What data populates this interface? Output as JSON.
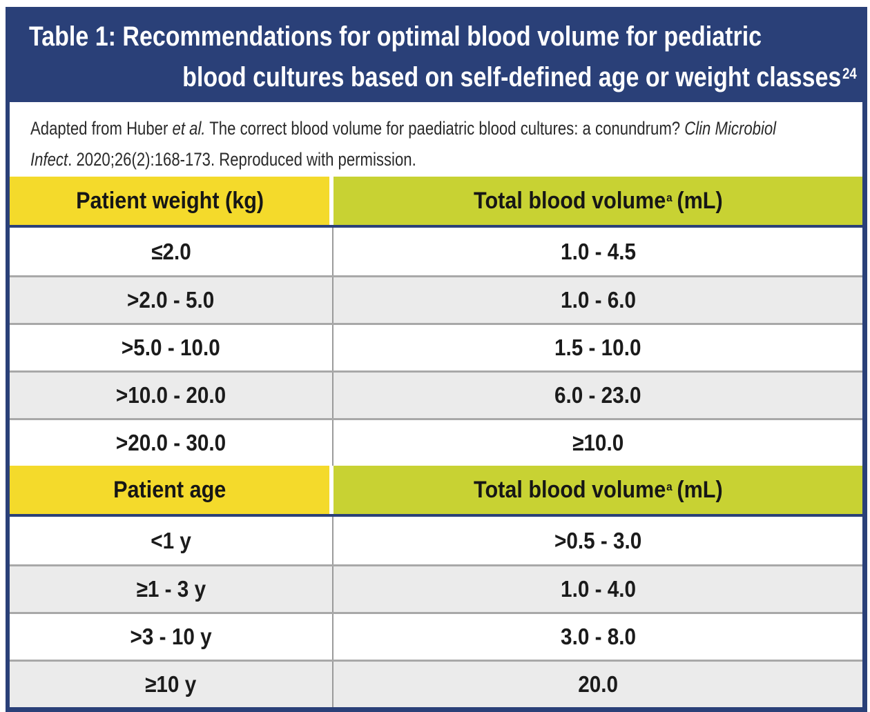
{
  "title": {
    "line1": "Table 1: Recommendations for optimal blood volume for pediatric",
    "line2": "blood cultures based on self-defined age or weight classes",
    "superscript": "24"
  },
  "citation": {
    "line1": {
      "t1": "Adapted from Huber ",
      "i1": "et al.",
      "t2": " The correct blood volume for paediatric blood cultures: a conundrum? ",
      "i2": "Clin Microbiol"
    },
    "line2": {
      "i1": "Infect",
      "t1": ". 2020;26(2):168-173. Reproduced with permission."
    }
  },
  "weight_section": {
    "col1_header": "Patient weight (kg)",
    "col2_header": "Total blood volume",
    "col2_sup": "a",
    "col2_suffix": "(mL)",
    "rows": [
      [
        "≤2.0",
        "1.0 - 4.5"
      ],
      [
        ">2.0 - 5.0",
        "1.0 - 6.0"
      ],
      [
        ">5.0 - 10.0",
        "1.5 - 10.0"
      ],
      [
        ">10.0 - 20.0",
        "6.0 - 23.0"
      ],
      [
        ">20.0 - 30.0",
        "≥10.0"
      ]
    ]
  },
  "age_section": {
    "col1_header": "Patient age",
    "col2_header": "Total blood volume",
    "col2_sup": "a",
    "col2_suffix": "(mL)",
    "rows": [
      [
        "<1 y",
        ">0.5 - 3.0"
      ],
      [
        "≥1 - 3 y",
        "1.0 - 4.0"
      ],
      [
        ">3 - 10 y",
        "3.0 - 8.0"
      ],
      [
        "≥10 y",
        "20.0"
      ]
    ]
  },
  "colors": {
    "navy": "#2a4078",
    "yellow": "#f4da2b",
    "green": "#c8d233",
    "row_gray": "#ebebeb",
    "separator_gray": "#a8a8a8"
  }
}
